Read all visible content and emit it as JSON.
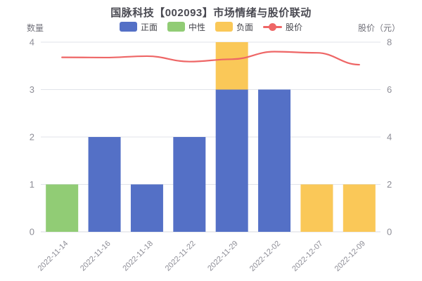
{
  "page": {
    "background": "#ffffff"
  },
  "chart_data": {
    "type": "bar",
    "subtype": "stacked-bar-with-line-overlay",
    "title": "国脉科技【002093】市场情绪与股价联动",
    "legend_position": "top",
    "grid": "horizontal-only",
    "stacked": true,
    "categories": [
      "2022-11-14",
      "2022-11-16",
      "2022-11-18",
      "2022-11-22",
      "2022-11-29",
      "2022-12-02",
      "2022-12-07",
      "2022-12-09"
    ],
    "series": [
      {
        "name": "正面",
        "kind": "bar",
        "axis": "left",
        "color": "#5470c6",
        "values": [
          0,
          2,
          1,
          2,
          3,
          3,
          0,
          0
        ]
      },
      {
        "name": "中性",
        "kind": "bar",
        "axis": "left",
        "color": "#91cc75",
        "values": [
          1,
          0,
          0,
          0,
          0,
          0,
          0,
          0
        ]
      },
      {
        "name": "负面",
        "kind": "bar",
        "axis": "left",
        "color": "#fac858",
        "values": [
          0,
          0,
          0,
          0,
          1,
          0,
          1,
          1
        ]
      },
      {
        "name": "股价",
        "kind": "line",
        "axis": "right",
        "color": "#ee6666",
        "values": [
          7.36,
          7.35,
          7.41,
          7.18,
          7.28,
          7.6,
          7.55,
          7.05
        ]
      }
    ],
    "left_axis": {
      "label": "数量",
      "range": [
        0,
        4
      ],
      "ticks": [
        "0",
        "1",
        "2",
        "3",
        "4"
      ]
    },
    "right_axis": {
      "label": "股价（元）",
      "range": [
        0,
        8
      ],
      "ticks": [
        "0",
        "2",
        "4",
        "6",
        "8"
      ]
    }
  },
  "colors": {
    "grid_line": "#e0e3ea",
    "axis_text": "#8d8d96",
    "title_text": "#4a4a52",
    "legend_text": "#44444b"
  }
}
